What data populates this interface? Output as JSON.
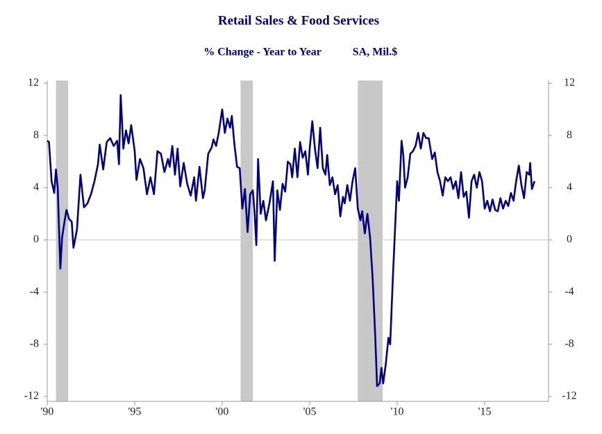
{
  "chart_data": {
    "type": "line",
    "title": "Retail Sales & Food Services",
    "subtitle": "% Change - Year to Year",
    "subtitle2": "SA, Mil.$",
    "xlim": [
      1990,
      2018.65
    ],
    "ylim": [
      -12,
      12
    ],
    "y2lim": [
      -12,
      12
    ],
    "xticks": [
      {
        "value": 1990,
        "label": "'90"
      },
      {
        "value": 1995,
        "label": "'95"
      },
      {
        "value": 2000,
        "label": "'00"
      },
      {
        "value": 2005,
        "label": "'05"
      },
      {
        "value": 2010,
        "label": "'10"
      },
      {
        "value": 2015,
        "label": "'15"
      }
    ],
    "yticks": [
      12,
      8,
      4,
      0,
      -4,
      -8,
      -12
    ],
    "y2ticks": [
      12,
      8,
      4,
      0,
      -4,
      -8,
      -12
    ],
    "zero_line": true,
    "shaded_periods": [
      [
        1990.5,
        1991.2
      ],
      [
        2001.05,
        2001.75
      ],
      [
        2007.75,
        2009.17
      ]
    ],
    "shade_color": "#c8c8c8",
    "series": [
      {
        "color": "#000080",
        "x": [
          1990.0,
          1990.1,
          1990.25,
          1990.4,
          1990.5,
          1990.6,
          1990.75,
          1990.85,
          1991.0,
          1991.1,
          1991.25,
          1991.4,
          1991.5,
          1991.7,
          1991.9,
          1992.1,
          1992.3,
          1992.5,
          1992.7,
          1992.9,
          1993.0,
          1993.2,
          1993.4,
          1993.6,
          1993.8,
          1994.0,
          1994.1,
          1994.2,
          1994.35,
          1994.5,
          1994.65,
          1994.8,
          1995.0,
          1995.1,
          1995.3,
          1995.5,
          1995.7,
          1995.9,
          1996.1,
          1996.3,
          1996.5,
          1996.7,
          1996.9,
          1997.0,
          1997.15,
          1997.3,
          1997.45,
          1997.6,
          1997.8,
          1998.0,
          1998.2,
          1998.4,
          1998.5,
          1998.7,
          1998.9,
          1999.0,
          1999.2,
          1999.4,
          1999.5,
          1999.65,
          1999.8,
          2000.0,
          2000.15,
          2000.3,
          2000.45,
          2000.55,
          2000.7,
          2000.85,
          2001.0,
          2001.15,
          2001.3,
          2001.45,
          2001.6,
          2001.75,
          2001.85,
          2001.95,
          2002.05,
          2002.2,
          2002.35,
          2002.5,
          2002.7,
          2002.9,
          2003.0,
          2003.15,
          2003.3,
          2003.45,
          2003.6,
          2003.75,
          2003.9,
          2004.0,
          2004.15,
          2004.3,
          2004.45,
          2004.6,
          2004.75,
          2004.9,
          2005.0,
          2005.15,
          2005.3,
          2005.45,
          2005.6,
          2005.75,
          2005.9,
          2006.0,
          2006.15,
          2006.3,
          2006.45,
          2006.6,
          2006.75,
          2006.9,
          2007.0,
          2007.15,
          2007.3,
          2007.45,
          2007.6,
          2007.75,
          2007.9,
          2008.0,
          2008.15,
          2008.3,
          2008.45,
          2008.6,
          2008.75,
          2008.85,
          2009.0,
          2009.1,
          2009.2,
          2009.35,
          2009.5,
          2009.6,
          2009.75,
          2009.9,
          2010.0,
          2010.1,
          2010.25,
          2010.35,
          2010.45,
          2010.6,
          2010.75,
          2010.9,
          2011.05,
          2011.2,
          2011.35,
          2011.5,
          2011.65,
          2011.8,
          2012.0,
          2012.15,
          2012.3,
          2012.45,
          2012.6,
          2012.75,
          2012.9,
          2013.05,
          2013.2,
          2013.35,
          2013.5,
          2013.65,
          2013.8,
          2013.95,
          2014.1,
          2014.25,
          2014.4,
          2014.55,
          2014.7,
          2014.85,
          2015.0,
          2015.15,
          2015.3,
          2015.45,
          2015.6,
          2015.75,
          2015.9,
          2016.05,
          2016.2,
          2016.35,
          2016.5,
          2016.65,
          2016.8,
          2016.95,
          2017.1,
          2017.25,
          2017.4,
          2017.55,
          2017.6,
          2017.7,
          2017.85
        ],
        "values": [
          7.6,
          7.5,
          4.5,
          3.6,
          5.4,
          4.0,
          -2.2,
          0.2,
          1.5,
          2.3,
          1.6,
          1.4,
          -0.6,
          0.8,
          5.0,
          2.5,
          2.8,
          3.5,
          4.5,
          5.8,
          7.3,
          5.4,
          7.5,
          7.8,
          7.2,
          7.6,
          5.8,
          11.1,
          7.0,
          8.4,
          7.4,
          8.8,
          6.8,
          4.6,
          6.2,
          5.5,
          3.5,
          4.8,
          3.5,
          6.8,
          6.6,
          5.2,
          6.2,
          5.6,
          7.2,
          5.0,
          7.0,
          4.1,
          5.9,
          4.3,
          3.4,
          4.8,
          3.0,
          5.6,
          3.2,
          3.8,
          6.6,
          7.1,
          7.7,
          7.2,
          8.2,
          10.0,
          8.2,
          9.3,
          8.6,
          9.5,
          7.3,
          5.6,
          5.5,
          2.4,
          3.9,
          0.6,
          3.5,
          3.8,
          2.1,
          -0.4,
          6.2,
          2.0,
          3.0,
          1.5,
          2.8,
          4.5,
          -1.6,
          3.8,
          2.3,
          4.3,
          3.7,
          6.0,
          5.8,
          4.8,
          7.0,
          4.8,
          7.5,
          6.3,
          6.8,
          5.0,
          7.0,
          9.1,
          7.0,
          5.5,
          8.6,
          5.5,
          5.0,
          6.5,
          4.2,
          4.8,
          3.5,
          4.2,
          1.8,
          3.3,
          2.8,
          4.2,
          3.0,
          4.5,
          5.5,
          2.4,
          1.5,
          2.2,
          0.5,
          2.0,
          0.2,
          -3.0,
          -7.5,
          -11.2,
          -11.0,
          -9.8,
          -11.0,
          -9.5,
          -7.5,
          -8.0,
          -3.0,
          1.5,
          4.5,
          3.0,
          7.6,
          6.5,
          4.0,
          4.8,
          6.6,
          6.8,
          7.2,
          8.2,
          7.0,
          8.2,
          7.8,
          7.8,
          6.2,
          6.7,
          5.2,
          4.5,
          3.4,
          4.8,
          4.5,
          4.8,
          3.9,
          4.5,
          3.2,
          5.2,
          3.3,
          3.7,
          1.7,
          4.5,
          5.0,
          4.0,
          5.2,
          4.5,
          2.4,
          3.0,
          2.2,
          3.1,
          2.3,
          2.2,
          3.2,
          2.4,
          3.0,
          2.6,
          3.6,
          3.0,
          4.5,
          5.7,
          4.2,
          3.2,
          5.2,
          5.0,
          5.9,
          3.9,
          4.5
        ]
      }
    ]
  }
}
